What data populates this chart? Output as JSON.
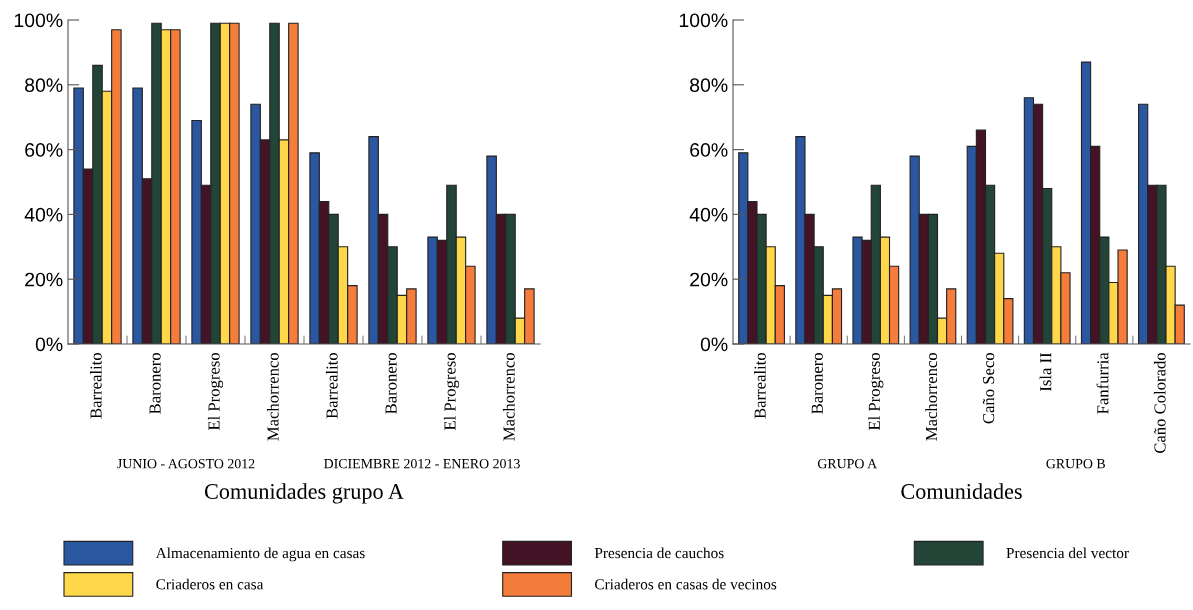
{
  "chart_data": [
    {
      "type": "bar",
      "xlabel": "Comunidades grupo A",
      "categories": [
        "Barrealito",
        "Baronero",
        "El Progreso",
        "Machorrenco",
        "Barrealito",
        "Baronero",
        "El Progreso",
        "Machorrenco"
      ],
      "series": [
        {
          "name": "Almacenamiento de agua en casas",
          "color": "#2b57a0",
          "values": [
            79,
            79,
            69,
            74,
            59,
            64,
            33,
            58
          ]
        },
        {
          "name": "Presencia de cauchos",
          "color": "#451326",
          "values": [
            54,
            51,
            49,
            63,
            44,
            40,
            32,
            40
          ]
        },
        {
          "name": "Presencia del vector",
          "color": "#224537",
          "values": [
            86,
            99,
            99,
            99,
            40,
            30,
            49,
            40
          ]
        },
        {
          "name": "Criaderos en casa",
          "color": "#fed84a",
          "values": [
            78,
            97,
            99,
            63,
            30,
            15,
            33,
            8
          ]
        },
        {
          "name": "Criaderos en casas de vecinos",
          "color": "#f57d3c",
          "values": [
            97,
            97,
            99,
            99,
            18,
            17,
            24,
            17
          ]
        }
      ],
      "ylim": [
        0,
        100
      ],
      "yticks": [
        {
          "value": 0,
          "label": "0%"
        },
        {
          "value": 20,
          "label": "20%"
        },
        {
          "value": 40,
          "label": "40%"
        },
        {
          "value": 60,
          "label": "60%"
        },
        {
          "value": 80,
          "label": "80%"
        },
        {
          "value": 100,
          "label": "100%"
        }
      ],
      "annotations": [
        "JUNIO - AGOSTO 2012",
        "DICIEMBRE 2012 - ENERO 2013"
      ],
      "grid": false,
      "legend": "bottom"
    },
    {
      "type": "bar",
      "xlabel": "Comunidades",
      "categories": [
        "Barrealito",
        "Baronero",
        "El Progreso",
        "Machorrenco",
        "Caño Seco",
        "Isla II",
        "Fanfurria",
        "Caño Colorado"
      ],
      "series": [
        {
          "color": "#2b57a0",
          "values": [
            59,
            64,
            33,
            58,
            61,
            76,
            87,
            74
          ]
        },
        {
          "color": "#451326",
          "values": [
            44,
            40,
            32,
            40,
            66,
            74,
            61,
            49
          ]
        },
        {
          "color": "#224537",
          "values": [
            40,
            30,
            49,
            40,
            49,
            48,
            33,
            49
          ]
        },
        {
          "color": "#fed84a",
          "values": [
            30,
            15,
            33,
            8,
            28,
            30,
            19,
            24
          ]
        },
        {
          "color": "#f57d3c",
          "values": [
            18,
            17,
            24,
            17,
            14,
            22,
            29,
            12
          ]
        }
      ],
      "ylim": [
        0,
        100
      ],
      "yticks": [
        {
          "value": 0,
          "label": "0%"
        },
        {
          "value": 20,
          "label": "20%"
        },
        {
          "value": 40,
          "label": "40%"
        },
        {
          "value": 60,
          "label": "60%"
        },
        {
          "value": 80,
          "label": "80%"
        },
        {
          "value": 100,
          "label": "100%"
        }
      ],
      "annotations": [
        "GRUPO A",
        "GRUPO B"
      ],
      "grid": false
    }
  ]
}
